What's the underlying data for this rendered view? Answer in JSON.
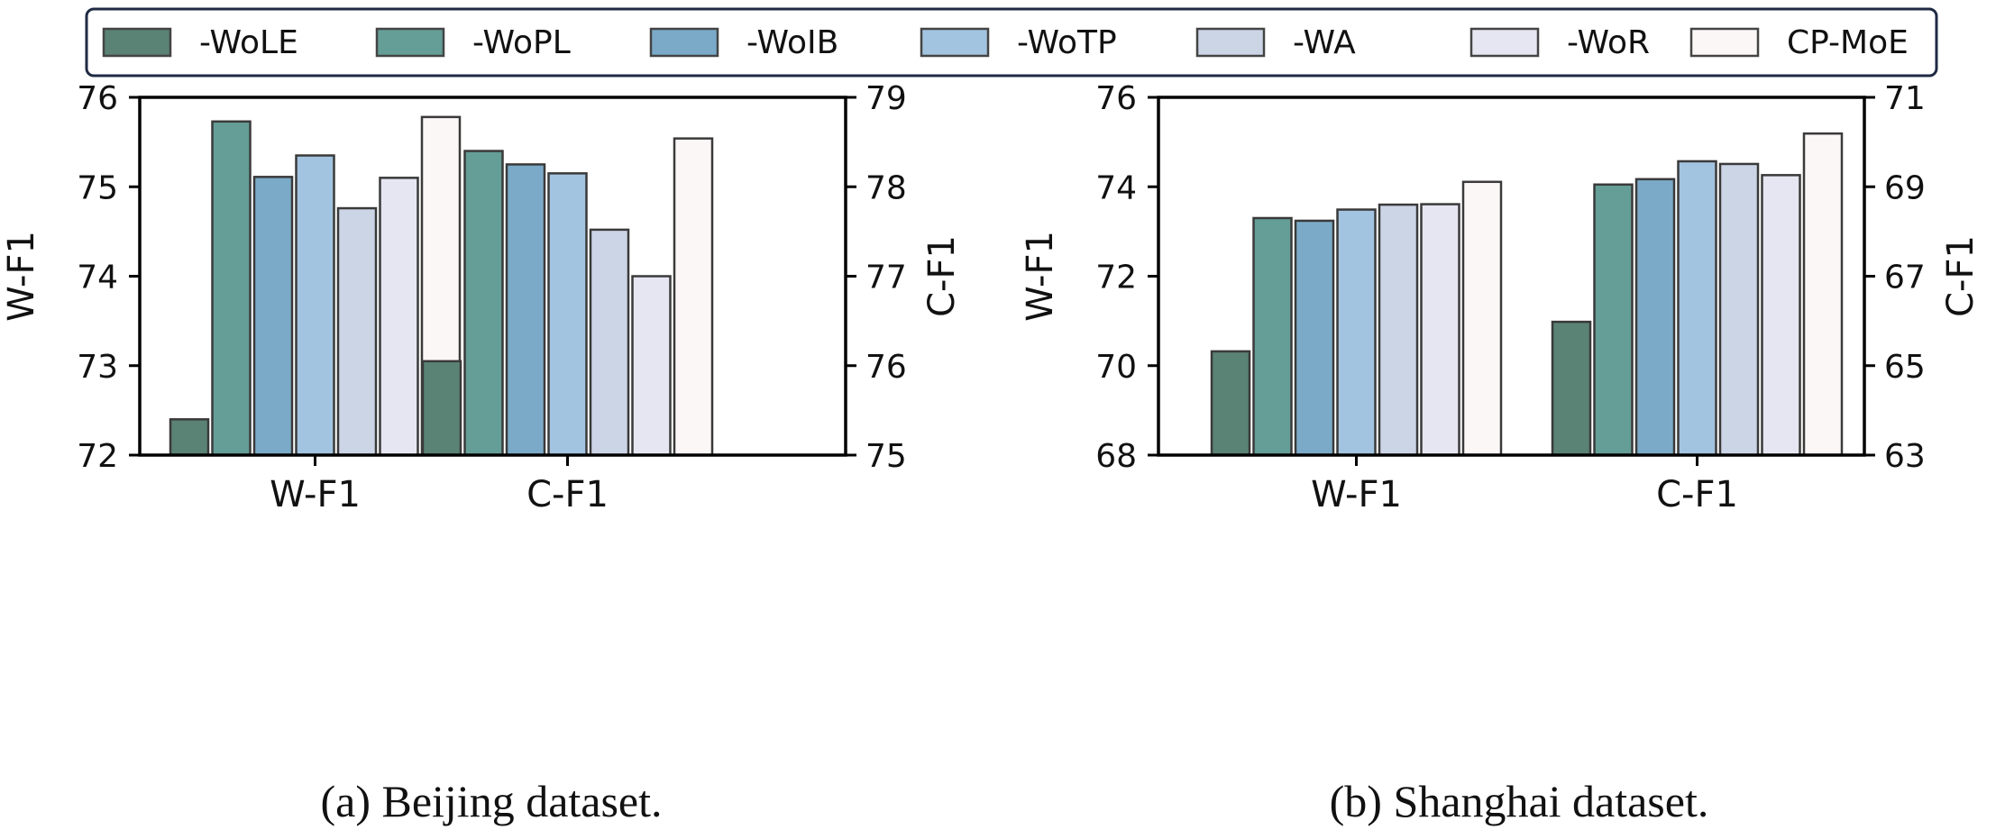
{
  "legend": {
    "entries": [
      {
        "label": "-WoLE",
        "color": "#5a8275"
      },
      {
        "label": "-WoPL",
        "color": "#649e96"
      },
      {
        "label": "-WoIB",
        "color": "#7aaac8"
      },
      {
        "label": "-WoTP",
        "color": "#a3c4e0"
      },
      {
        "label": "-WA",
        "color": "#ccd5e6"
      },
      {
        "label": "-WoR",
        "color": "#e6e6f2"
      },
      {
        "label": "CP-MoE",
        "color": "#fcf7f7"
      }
    ],
    "border_color": "#1f2a44"
  },
  "chart_data": [
    {
      "type": "bar",
      "title": "(a) Beijing dataset.",
      "categories": [
        "W-F1",
        "C-F1"
      ],
      "ylabel": "W-F1",
      "ylabel_right": "C-F1",
      "ylim": [
        72,
        76
      ],
      "ylim_right": [
        75,
        79
      ],
      "yticks": [
        "72",
        "73",
        "74",
        "75",
        "76"
      ],
      "yticks_right": [
        "75",
        "76",
        "77",
        "78",
        "79"
      ],
      "series": [
        {
          "name": "-WoLE",
          "values": [
            72.4,
            76.05
          ]
        },
        {
          "name": "-WoPL",
          "values": [
            75.73,
            78.4
          ]
        },
        {
          "name": "-WoIB",
          "values": [
            75.11,
            78.25
          ]
        },
        {
          "name": "-WoTP",
          "values": [
            75.35,
            78.15
          ]
        },
        {
          "name": "-WA",
          "values": [
            74.76,
            77.52
          ]
        },
        {
          "name": "-WoR",
          "values": [
            75.1,
            77.0
          ]
        },
        {
          "name": "CP-MoE",
          "values": [
            75.78,
            78.54
          ]
        }
      ]
    },
    {
      "type": "bar",
      "title": "(b) Shanghai dataset.",
      "categories": [
        "W-F1",
        "C-F1"
      ],
      "ylabel": "W-F1",
      "ylabel_right": "C-F1",
      "ylim": [
        68,
        76
      ],
      "ylim_right": [
        63,
        71
      ],
      "yticks": [
        "68",
        "70",
        "72",
        "74",
        "76"
      ],
      "yticks_right": [
        "63",
        "65",
        "67",
        "69",
        "71"
      ],
      "series": [
        {
          "name": "-WoLE",
          "values": [
            70.32,
            65.98
          ]
        },
        {
          "name": "-WoPL",
          "values": [
            73.3,
            69.05
          ]
        },
        {
          "name": "-WoIB",
          "values": [
            73.24,
            69.17
          ]
        },
        {
          "name": "-WoTP",
          "values": [
            73.49,
            69.57
          ]
        },
        {
          "name": "-WA",
          "values": [
            73.6,
            69.51
          ]
        },
        {
          "name": "-WoR",
          "values": [
            73.61,
            69.26
          ]
        },
        {
          "name": "CP-MoE",
          "values": [
            74.11,
            70.19
          ]
        }
      ]
    }
  ]
}
